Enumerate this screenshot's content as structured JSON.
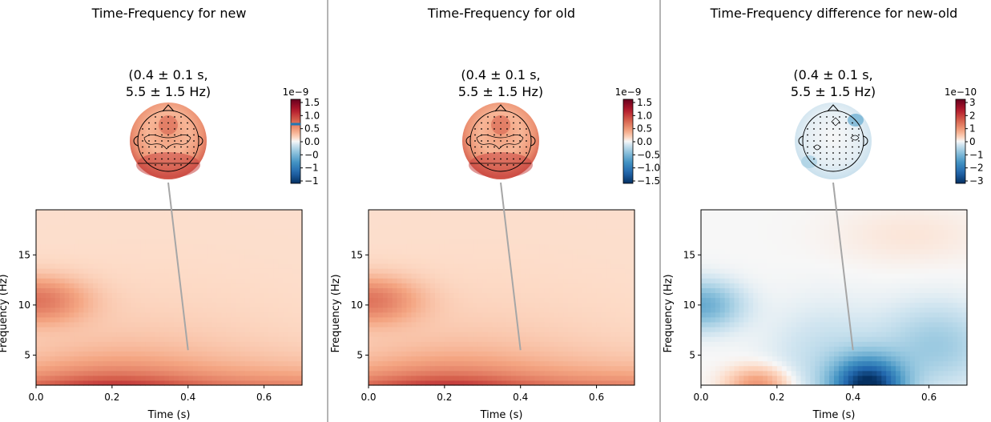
{
  "chart_data": [
    {
      "type": "heatmap",
      "title": "Time-Frequency for new",
      "topomap_title": "(0.4 ± 0.1 s,\n5.5 ± 1.5 Hz)",
      "xlabel": "Time (s)",
      "ylabel": "Frequency (Hz)",
      "xlim": [
        0.0,
        0.7
      ],
      "ylim": [
        2,
        19.5
      ],
      "xticks": [
        "0.0",
        "0.2",
        "0.4",
        "0.6"
      ],
      "yticks": [
        "5",
        "10",
        "15"
      ],
      "colormap": "RdBu_r",
      "colorbar": {
        "scale_label": "1e−9",
        "ticks": [
          "1.5",
          "1.0",
          "0.5",
          "0.0",
          "−0",
          "−1",
          "−1"
        ]
      },
      "annotation": {
        "time": 0.4,
        "freq": 5.5
      },
      "peaks": [
        {
          "time": 0.2,
          "freq": 2.0,
          "value": 1.5
        },
        {
          "time": 0.0,
          "freq": 10.5,
          "value": 0.95
        }
      ]
    },
    {
      "type": "heatmap",
      "title": "Time-Frequency for old",
      "topomap_title": "(0.4 ± 0.1 s,\n5.5 ± 1.5 Hz)",
      "xlabel": "Time (s)",
      "ylabel": "Frequency (Hz)",
      "xlim": [
        0.0,
        0.7
      ],
      "ylim": [
        2,
        19.5
      ],
      "xticks": [
        "0.0",
        "0.2",
        "0.4",
        "0.6"
      ],
      "yticks": [
        "5",
        "10",
        "15"
      ],
      "colormap": "RdBu_r",
      "colorbar": {
        "scale_label": "1e−9",
        "ticks": [
          "1.5",
          "1.0",
          "0.5",
          "0.0",
          "−0.5",
          "−1.0",
          "−1.5"
        ]
      },
      "annotation": {
        "time": 0.4,
        "freq": 5.5
      },
      "peaks": [
        {
          "time": 0.2,
          "freq": 2.0,
          "value": 1.5
        },
        {
          "time": 0.0,
          "freq": 10.5,
          "value": 0.95
        }
      ]
    },
    {
      "type": "heatmap",
      "title": "Time-Frequency difference for new-old",
      "topomap_title": "(0.4 ± 0.1 s,\n5.5 ± 1.5 Hz)",
      "xlabel": "Time (s)",
      "ylabel": "Frequency (Hz)",
      "xlim": [
        0.0,
        0.7
      ],
      "ylim": [
        2,
        19.5
      ],
      "xticks": [
        "0.0",
        "0.2",
        "0.4",
        "0.6"
      ],
      "yticks": [
        "5",
        "10",
        "15"
      ],
      "colormap": "RdBu_r",
      "colorbar": {
        "scale_label": "1e−10",
        "ticks": [
          "3",
          "2",
          "1",
          "0",
          "−1",
          "−2",
          "−3"
        ]
      },
      "annotation": {
        "time": 0.4,
        "freq": 5.5
      },
      "peaks": [
        {
          "time": 0.43,
          "freq": 2.0,
          "value": -3.0
        },
        {
          "time": 0.15,
          "freq": 2.0,
          "value": 1.2
        },
        {
          "time": 0.0,
          "freq": 10.0,
          "value": -1.3
        }
      ]
    }
  ]
}
